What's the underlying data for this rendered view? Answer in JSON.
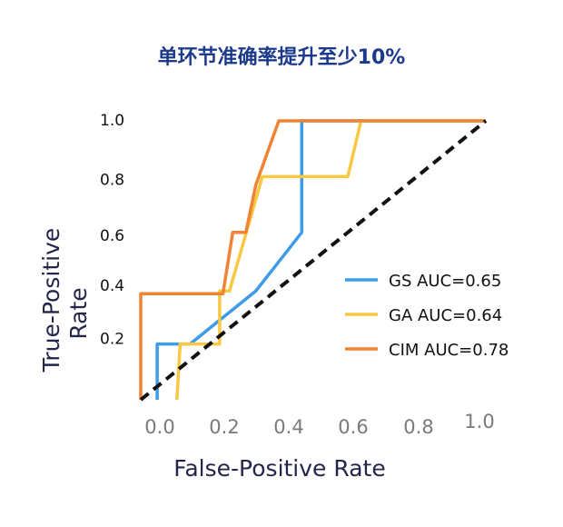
{
  "chart_data": {
    "type": "line",
    "title": "单环节准确率提升至少10%",
    "xlabel": "False-Positive Rate",
    "ylabel_lines": [
      "True-Positive",
      "Rate"
    ],
    "x_ticks": [
      "0.0",
      "0.2",
      "0.4",
      "0.6",
      "0.8",
      "1.0"
    ],
    "y_ticks": [
      "0.2",
      "0.4",
      "0.6",
      "0.8",
      "1.0"
    ],
    "xlim": [
      -0.05,
      1.0
    ],
    "ylim": [
      0.0,
      1.0
    ],
    "grid": false,
    "legend_position": "center-right",
    "series": [
      {
        "name": "GS AUC=0.65",
        "color": "#3d9be9",
        "x": [
          0.0,
          0.0,
          0.1,
          0.3,
          0.3,
          0.44,
          0.44,
          0.44,
          1.0
        ],
        "y": [
          0.0,
          0.2,
          0.2,
          0.39,
          0.39,
          0.6,
          0.6,
          1.0,
          1.0
        ]
      },
      {
        "name": "GA AUC=0.64",
        "color": "#f8c842",
        "x": [
          0.06,
          0.07,
          0.19,
          0.19,
          0.22,
          0.32,
          0.58,
          0.62,
          1.0
        ],
        "y": [
          0.0,
          0.2,
          0.2,
          0.39,
          0.39,
          0.8,
          0.8,
          1.0,
          1.0
        ]
      },
      {
        "name": "CIM AUC=0.78",
        "color": "#f18334",
        "x": [
          -0.05,
          -0.05,
          0.2,
          0.23,
          0.27,
          0.3,
          0.37,
          1.0
        ],
        "y": [
          0.0,
          0.38,
          0.38,
          0.6,
          0.6,
          0.77,
          1.0,
          1.0
        ]
      },
      {
        "name": "",
        "color": "#111111",
        "dashed": true,
        "x": [
          -0.05,
          1.0
        ],
        "y": [
          0.0,
          1.0
        ]
      }
    ]
  }
}
